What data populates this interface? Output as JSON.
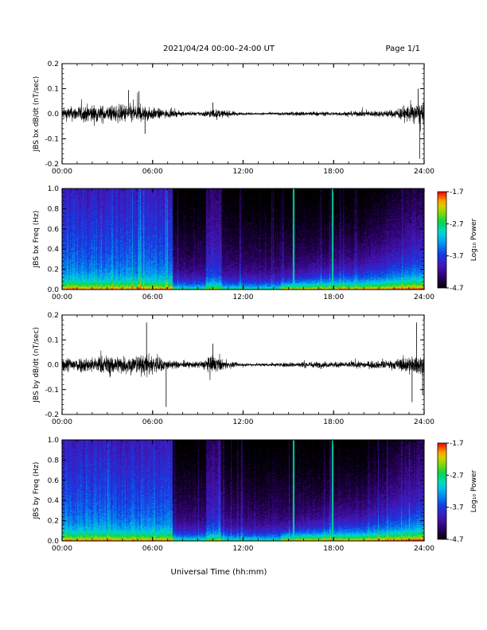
{
  "header": {
    "title": "2021/04/24  00:00–24:00 UT",
    "page": "Page 1/1"
  },
  "chart_data": [
    {
      "type": "line",
      "panel": "bx-dbdt",
      "ylabel": "JBS bx dB/dt (nT/sec)",
      "ylim": [
        -0.2,
        0.2
      ],
      "yticks": [
        "0.2",
        "0.1",
        "0.0",
        "-0.1",
        "-0.2"
      ],
      "xlim_hours": [
        0,
        24
      ],
      "xticks": [
        "00:00",
        "06:00",
        "12:00",
        "18:00",
        "24:00"
      ],
      "envelope": {
        "hours": [
          0,
          1,
          2,
          3,
          4,
          5,
          6,
          7,
          8,
          9,
          10,
          11,
          12,
          13,
          14,
          15,
          16,
          17,
          18,
          19,
          20,
          21,
          22,
          23,
          24
        ],
        "amplitude": [
          0.04,
          0.05,
          0.06,
          0.05,
          0.06,
          0.06,
          0.04,
          0.025,
          0.015,
          0.012,
          0.03,
          0.02,
          0.008,
          0.007,
          0.008,
          0.012,
          0.015,
          0.014,
          0.012,
          0.015,
          0.018,
          0.02,
          0.025,
          0.06,
          0.07
        ]
      },
      "spikes": [
        {
          "hour": 4.4,
          "value": 0.095
        },
        {
          "hour": 5.1,
          "value": 0.09
        },
        {
          "hour": 10.0,
          "value": 0.045
        },
        {
          "hour": 23.6,
          "value": 0.1
        },
        {
          "hour": 23.7,
          "value": -0.18
        },
        {
          "hour": 5.5,
          "value": -0.08
        }
      ]
    },
    {
      "type": "heatmap",
      "panel": "bx-freq",
      "ylabel": "JBS bx Freq (Hz)",
      "ylim": [
        0.0,
        1.0
      ],
      "yticks": [
        "1.0",
        "0.8",
        "0.6",
        "0.4",
        "0.2",
        "0.0"
      ],
      "xlim_hours": [
        0,
        24
      ],
      "xticks": [
        "00:00",
        "06:00",
        "12:00",
        "18:00",
        "24:00"
      ],
      "colorbar": {
        "label": "Log₁₀ Power",
        "ticks": [
          "-1.7",
          "-2.7",
          "-3.7",
          "-4.7"
        ],
        "range": [
          -4.7,
          -1.7
        ]
      },
      "active_period_hours": [
        0,
        7.3
      ],
      "bright_lines_hours": [
        15.3,
        17.9
      ]
    },
    {
      "type": "line",
      "panel": "by-dbdt",
      "ylabel": "JBS by dB/dt (nT/sec)",
      "ylim": [
        -0.2,
        0.2
      ],
      "yticks": [
        "0.2",
        "0.1",
        "0.0",
        "-0.1",
        "-0.2"
      ],
      "xlim_hours": [
        0,
        24
      ],
      "xticks": [
        "00:00",
        "06:00",
        "12:00",
        "18:00",
        "24:00"
      ],
      "envelope": {
        "hours": [
          0,
          1,
          2,
          3,
          4,
          5,
          6,
          7,
          8,
          9,
          10,
          11,
          12,
          13,
          14,
          15,
          16,
          17,
          18,
          19,
          20,
          21,
          22,
          23,
          24
        ],
        "amplitude": [
          0.05,
          0.05,
          0.05,
          0.06,
          0.06,
          0.06,
          0.07,
          0.03,
          0.02,
          0.02,
          0.06,
          0.02,
          0.01,
          0.01,
          0.012,
          0.015,
          0.02,
          0.02,
          0.018,
          0.02,
          0.022,
          0.025,
          0.03,
          0.06,
          0.06
        ]
      },
      "spikes": [
        {
          "hour": 5.6,
          "value": 0.17
        },
        {
          "hour": 6.9,
          "value": -0.17
        },
        {
          "hour": 10.0,
          "value": 0.085
        },
        {
          "hour": 23.5,
          "value": 0.17
        },
        {
          "hour": 23.2,
          "value": -0.15
        },
        {
          "hour": 23.9,
          "value": -0.12
        }
      ]
    },
    {
      "type": "heatmap",
      "panel": "by-freq",
      "ylabel": "JBS by Freq (Hz)",
      "ylim": [
        0.0,
        1.0
      ],
      "yticks": [
        "1.0",
        "0.8",
        "0.6",
        "0.4",
        "0.2",
        "0.0"
      ],
      "xlim_hours": [
        0,
        24
      ],
      "xticks": [
        "00:00",
        "06:00",
        "12:00",
        "18:00",
        "24:00"
      ],
      "colorbar": {
        "label": "Log₁₀ Power",
        "ticks": [
          "-1.7",
          "-2.7",
          "-3.7",
          "-4.7"
        ],
        "range": [
          -4.7,
          -1.7
        ]
      },
      "active_period_hours": [
        0,
        7.3
      ],
      "bright_lines_hours": [
        15.3,
        17.9
      ]
    }
  ],
  "xlabel": "Universal Time (hh:mm)"
}
